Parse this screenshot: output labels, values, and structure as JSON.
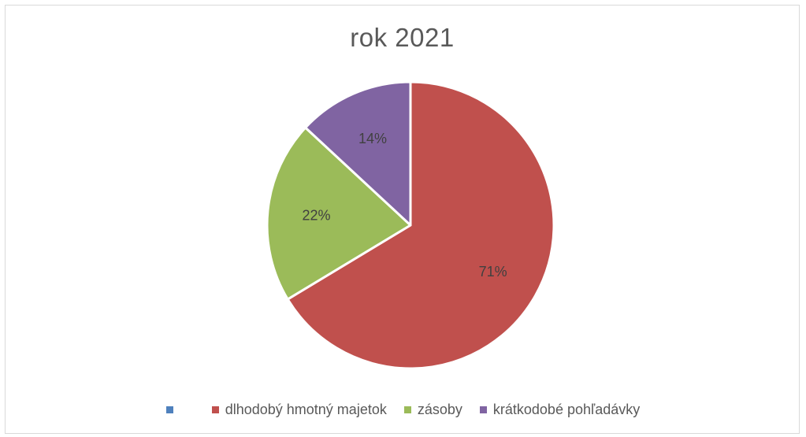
{
  "chart_data": {
    "type": "pie",
    "title": "rok 2021",
    "categories": [
      "",
      "dlhodobý hmotný majetok",
      "zásoby",
      "krátkodobé pohľadávky"
    ],
    "values": [
      0,
      71,
      22,
      14
    ],
    "labels": [
      "",
      "71%",
      "22%",
      "14%"
    ],
    "colors": [
      "#4f81bd",
      "#c0504d",
      "#9bbb59",
      "#8064a2"
    ],
    "legend": "bottom"
  }
}
